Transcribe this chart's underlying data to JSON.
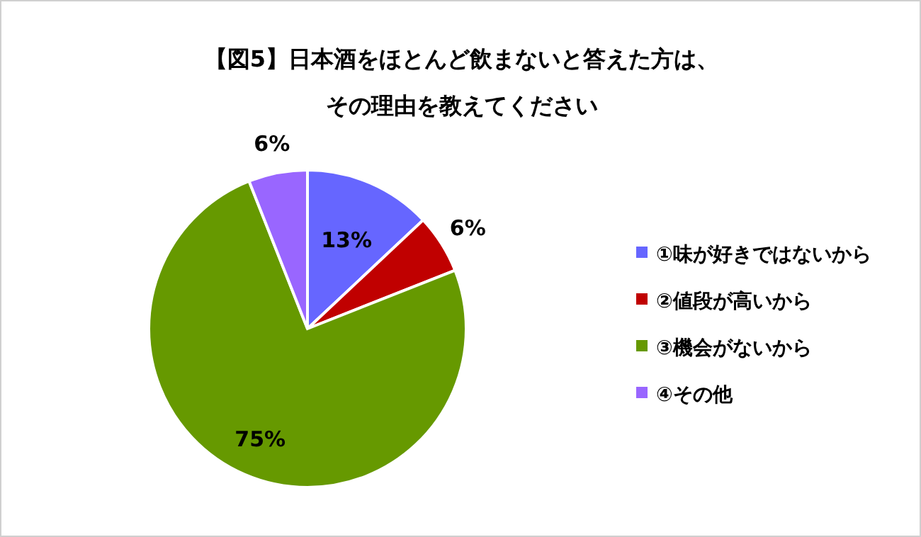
{
  "chart_data": {
    "type": "pie",
    "title": "【図5】日本酒をほとんど飲まないと答えた方は、",
    "subtitle": "その理由を教えてください",
    "categories": [
      "①味が好きではないから",
      "②値段が高いから",
      "③機会がないから",
      "④その他"
    ],
    "values": [
      13,
      6,
      75,
      6
    ],
    "value_labels": [
      "13%",
      "6%",
      "75%",
      "6%"
    ],
    "colors": [
      "#6666ff",
      "#c00000",
      "#669900",
      "#9966ff"
    ],
    "legend": "right"
  }
}
